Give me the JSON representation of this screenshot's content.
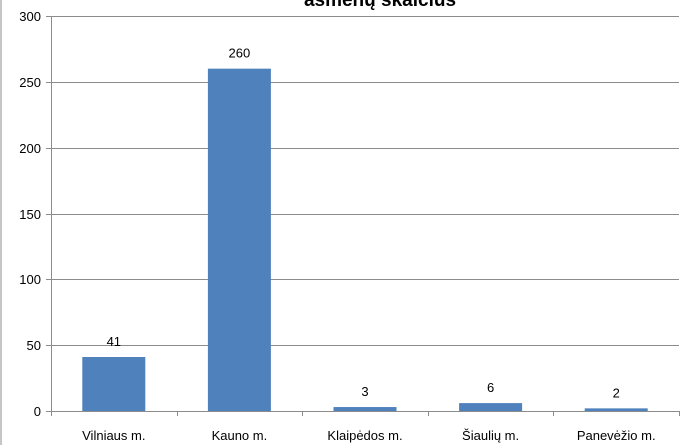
{
  "chart_data": {
    "type": "bar",
    "title": "asmenų skaičius",
    "categories": [
      "Vilniaus m.",
      "Kauno m.",
      "Klaipėdos m.",
      "Šiaulių m.",
      "Panevėžio m."
    ],
    "values": [
      41,
      260,
      3,
      6,
      2
    ],
    "data_labels": [
      "41",
      "260",
      "3",
      "6",
      "2"
    ],
    "yticks": [
      "0",
      "50",
      "100",
      "150",
      "200",
      "250",
      "300"
    ],
    "ylim": [
      0,
      300
    ],
    "grid": true,
    "legend": "none",
    "bar_color": "#4f81bd",
    "grid_color": "#8c8c8c"
  }
}
